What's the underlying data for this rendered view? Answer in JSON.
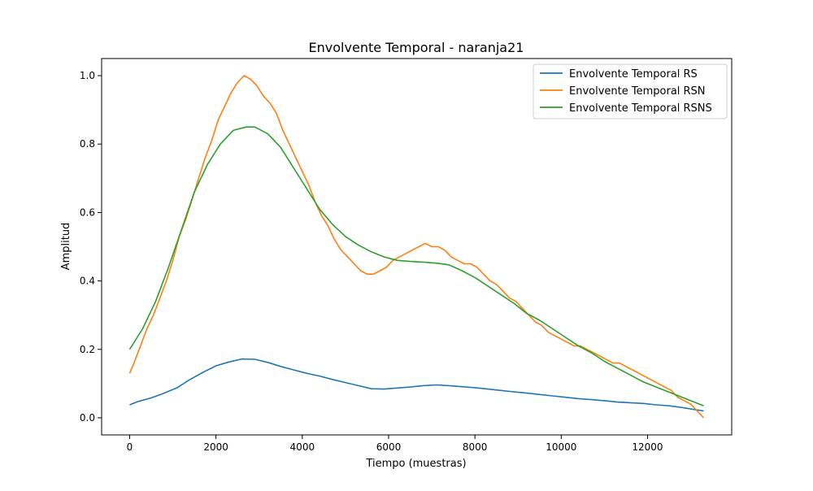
{
  "chart_data": {
    "type": "line",
    "title": "Envolvente Temporal - naranja21",
    "xlabel": "Tiempo (muestras)",
    "ylabel": "Amplitud",
    "xlim": [
      -650,
      13950
    ],
    "ylim": [
      -0.05,
      1.05
    ],
    "xticks": [
      0,
      2000,
      4000,
      6000,
      8000,
      10000,
      12000
    ],
    "yticks": [
      0.0,
      0.2,
      0.4,
      0.6,
      0.8,
      1.0
    ],
    "xtick_labels": [
      "0",
      "2000",
      "4000",
      "6000",
      "8000",
      "10000",
      "12000"
    ],
    "ytick_labels": [
      "0.0",
      "0.2",
      "0.4",
      "0.6",
      "0.8",
      "1.0"
    ],
    "grid": false,
    "legend_position": "top-right",
    "series": [
      {
        "name": "Envolvente Temporal RS",
        "color": "#1f77b4",
        "x": [
          0,
          200,
          500,
          800,
          1100,
          1400,
          1700,
          2000,
          2300,
          2600,
          2900,
          3200,
          3500,
          3800,
          4100,
          4400,
          4700,
          5000,
          5300,
          5600,
          5900,
          6200,
          6500,
          6800,
          7100,
          7400,
          7700,
          8000,
          8300,
          8600,
          8900,
          9200,
          9500,
          9800,
          10100,
          10400,
          10700,
          11000,
          11300,
          11600,
          11900,
          12200,
          12500,
          12800,
          13100,
          13300
        ],
        "y": [
          0.038,
          0.048,
          0.058,
          0.072,
          0.088,
          0.112,
          0.133,
          0.152,
          0.163,
          0.172,
          0.171,
          0.162,
          0.15,
          0.14,
          0.13,
          0.122,
          0.112,
          0.103,
          0.094,
          0.085,
          0.084,
          0.087,
          0.09,
          0.094,
          0.096,
          0.094,
          0.091,
          0.088,
          0.084,
          0.08,
          0.076,
          0.072,
          0.068,
          0.064,
          0.06,
          0.056,
          0.053,
          0.05,
          0.046,
          0.044,
          0.042,
          0.038,
          0.035,
          0.03,
          0.024,
          0.02
        ]
      },
      {
        "name": "Envolvente Temporal RSN",
        "color": "#ff7f0e",
        "x": [
          0,
          100,
          250,
          400,
          550,
          700,
          850,
          1000,
          1150,
          1300,
          1450,
          1600,
          1750,
          1900,
          2050,
          2200,
          2350,
          2500,
          2650,
          2800,
          2950,
          3100,
          3250,
          3400,
          3550,
          3700,
          3850,
          4000,
          4150,
          4300,
          4450,
          4600,
          4750,
          4900,
          5050,
          5200,
          5350,
          5500,
          5650,
          5800,
          5950,
          6100,
          6250,
          6400,
          6550,
          6700,
          6850,
          7000,
          7150,
          7300,
          7450,
          7600,
          7750,
          7900,
          8050,
          8200,
          8350,
          8500,
          8650,
          8800,
          8950,
          9100,
          9250,
          9400,
          9550,
          9700,
          9850,
          10000,
          10150,
          10300,
          10450,
          10600,
          10750,
          10900,
          11050,
          11200,
          11350,
          11500,
          11650,
          11800,
          11950,
          12100,
          12250,
          12400,
          12550,
          12700,
          12850,
          13000,
          13150,
          13300
        ],
        "y": [
          0.13,
          0.16,
          0.21,
          0.26,
          0.3,
          0.35,
          0.4,
          0.46,
          0.53,
          0.58,
          0.64,
          0.7,
          0.76,
          0.81,
          0.87,
          0.91,
          0.95,
          0.98,
          1.0,
          0.99,
          0.97,
          0.94,
          0.92,
          0.89,
          0.84,
          0.8,
          0.76,
          0.72,
          0.68,
          0.63,
          0.59,
          0.56,
          0.52,
          0.49,
          0.47,
          0.45,
          0.43,
          0.42,
          0.42,
          0.43,
          0.44,
          0.46,
          0.47,
          0.48,
          0.49,
          0.5,
          0.51,
          0.5,
          0.5,
          0.49,
          0.47,
          0.46,
          0.45,
          0.45,
          0.44,
          0.42,
          0.4,
          0.39,
          0.37,
          0.35,
          0.34,
          0.32,
          0.3,
          0.28,
          0.27,
          0.25,
          0.24,
          0.23,
          0.22,
          0.21,
          0.21,
          0.2,
          0.19,
          0.18,
          0.17,
          0.16,
          0.16,
          0.15,
          0.14,
          0.13,
          0.12,
          0.11,
          0.1,
          0.09,
          0.08,
          0.06,
          0.05,
          0.04,
          0.02,
          0.0
        ]
      },
      {
        "name": "Envolvente Temporal RSNS",
        "color": "#2ca02c",
        "x": [
          0,
          300,
          600,
          900,
          1200,
          1500,
          1800,
          2100,
          2400,
          2700,
          2900,
          3200,
          3500,
          3800,
          4100,
          4400,
          4700,
          5000,
          5300,
          5600,
          5900,
          6200,
          6500,
          6800,
          7100,
          7400,
          7700,
          8000,
          8300,
          8600,
          8900,
          9200,
          9500,
          9800,
          10100,
          10400,
          10700,
          11000,
          11300,
          11600,
          11900,
          12200,
          12500,
          12800,
          13100,
          13300
        ],
        "y": [
          0.2,
          0.26,
          0.34,
          0.44,
          0.55,
          0.66,
          0.74,
          0.8,
          0.84,
          0.85,
          0.85,
          0.83,
          0.79,
          0.73,
          0.67,
          0.61,
          0.565,
          0.53,
          0.505,
          0.485,
          0.47,
          0.46,
          0.457,
          0.455,
          0.452,
          0.447,
          0.43,
          0.41,
          0.385,
          0.36,
          0.335,
          0.305,
          0.285,
          0.26,
          0.235,
          0.21,
          0.19,
          0.165,
          0.145,
          0.125,
          0.105,
          0.09,
          0.075,
          0.06,
          0.045,
          0.035
        ]
      }
    ]
  }
}
